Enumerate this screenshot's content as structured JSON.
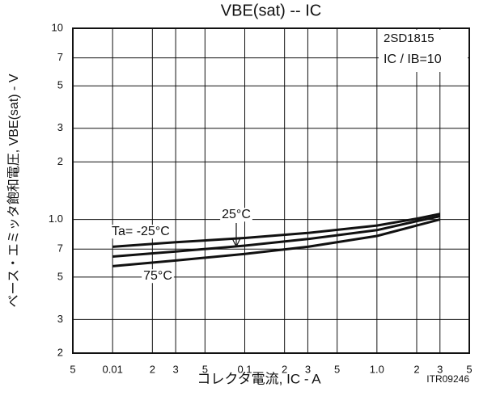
{
  "chart_data": {
    "type": "line",
    "title": "VBE(sat) -- IC",
    "x_label": "コレクタ電流, IC - A",
    "y_label": "ベース・エミッタ飽和電圧, VBE(sat) - V",
    "annotations": [
      "2SD1815",
      "IC / IB=10",
      "ITR09246"
    ],
    "log_x": true,
    "log_y": true,
    "grid": true,
    "x": [
      0.01,
      0.03,
      0.1,
      0.3,
      1,
      2,
      3
    ],
    "series": [
      {
        "name": "Ta= -25°C",
        "color": "#111111",
        "values": [
          0.72,
          0.76,
          0.8,
          0.85,
          0.93,
          1.01,
          1.07
        ]
      },
      {
        "name": "25°C",
        "color": "#111111",
        "values": [
          0.64,
          0.68,
          0.73,
          0.79,
          0.88,
          0.98,
          1.04
        ]
      },
      {
        "name": "75°C",
        "color": "#111111",
        "values": [
          0.57,
          0.61,
          0.66,
          0.72,
          0.82,
          0.93,
          1.0
        ]
      }
    ],
    "xlim": [
      0.005,
      5
    ],
    "xticks": [
      {
        "value": 0.005,
        "label": "5"
      },
      0.01,
      {
        "value": 0.02,
        "label": "2"
      },
      {
        "value": 0.03,
        "label": "3"
      },
      {
        "value": 0.05,
        "label": "5"
      },
      0.1,
      {
        "value": 0.2,
        "label": "2"
      },
      {
        "value": 0.3,
        "label": "3"
      },
      {
        "value": 0.5,
        "label": "5"
      },
      {
        "value": 1,
        "label": "1.0"
      },
      2,
      3,
      5
    ],
    "ylim": [
      0.2,
      10
    ],
    "yticks": [
      10,
      7,
      5,
      3,
      2,
      {
        "value": 1,
        "label": "1.0"
      },
      {
        "value": 0.7,
        "label": "7"
      },
      {
        "value": 0.5,
        "label": "5"
      },
      {
        "value": 0.3,
        "label": "3"
      },
      {
        "value": 0.2,
        "label": "2"
      }
    ]
  }
}
